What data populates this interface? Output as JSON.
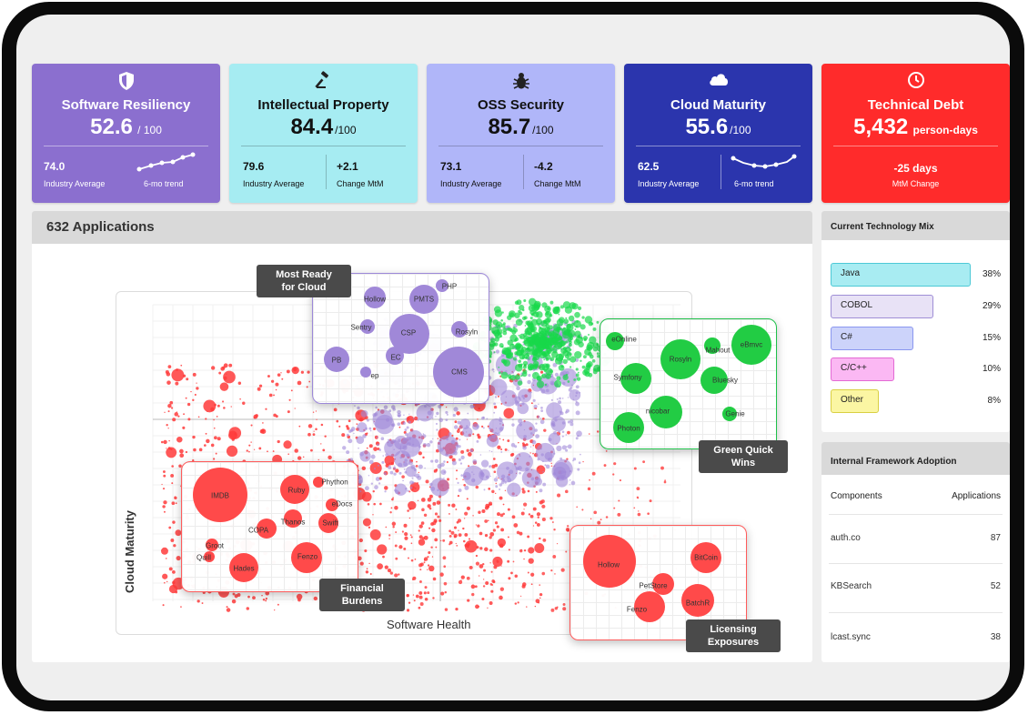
{
  "cards": [
    {
      "id": "resiliency",
      "title": "Software Resiliency",
      "value": "52.6",
      "unit": " / 100",
      "stat1_value": "74.0",
      "stat1_label": "Industry Average",
      "stat2_value": "",
      "stat2_label": "6-mo trend",
      "icon": "shield-icon",
      "bg": "#8b6fcf",
      "theme": "dark"
    },
    {
      "id": "ip",
      "title": "Intellectual Property",
      "value": "84.4",
      "unit": "/100",
      "stat1_value": "79.6",
      "stat1_label": "Industry Average",
      "stat2_value": "+2.1",
      "stat2_label": "Change MtM",
      "icon": "gavel-icon",
      "bg": "#a6ecf2",
      "theme": "light"
    },
    {
      "id": "oss",
      "title": "OSS Security",
      "value": "85.7",
      "unit": "/100",
      "stat1_value": "73.1",
      "stat1_label": "Industry Average",
      "stat2_value": "-4.2",
      "stat2_label": "Change MtM",
      "icon": "bug-icon",
      "bg": "#b0b6f9",
      "theme": "light"
    },
    {
      "id": "cloud",
      "title": "Cloud Maturity",
      "value": "55.6",
      "unit": "/100",
      "stat1_value": "62.5",
      "stat1_label": "Industry Average",
      "stat2_value": "",
      "stat2_label": "6-mo trend",
      "icon": "cloud-icon",
      "bg": "#2b35ad",
      "theme": "dark"
    },
    {
      "id": "debt",
      "title": "Technical Debt",
      "value": "5,432",
      "unit": " person-days",
      "stat1_value": "-25 days",
      "stat1_label": "MtM Change",
      "icon": "clock-icon",
      "bg": "#ff2b2b",
      "theme": "dark"
    }
  ],
  "apps_panel": {
    "title": "632 Applications",
    "ylabel": "Cloud Maturity",
    "xlabel": "Software Health"
  },
  "zooms": {
    "cloud_ready": {
      "callout": [
        "Most Ready",
        "for Cloud"
      ],
      "color": "#a088d8",
      "labels": [
        "Hollow",
        "PMTS",
        "PHP",
        "Sentry",
        "CSP",
        "Rosyln",
        "PB",
        "EC",
        "CMS",
        "ep"
      ]
    },
    "quick_wins": {
      "callout": [
        "Green Quick",
        "Wins"
      ],
      "color": "#22cc44",
      "labels": [
        "eOnline",
        "Rosyln",
        "Mahout",
        "eBmvc",
        "Symfony",
        "Bluesky",
        "nicobar",
        "Genie",
        "Photon"
      ]
    },
    "financial": {
      "callout": [
        "Financial",
        "Burdens"
      ],
      "color": "#ff4a4a",
      "labels": [
        "IMDB",
        "Ruby",
        "Phython",
        "eDocs",
        "Thanos",
        "Swift",
        "COPA",
        "Groot",
        "Quill",
        "Hades",
        "Fenzo"
      ]
    },
    "licensing": {
      "callout": [
        "Licensing",
        "Exposures"
      ],
      "color": "#ff4a4a",
      "labels": [
        "Hollow",
        "BitCoin",
        "PetStore",
        "BatchR",
        "Fenzo"
      ]
    }
  },
  "tech_mix": {
    "title": "Current Technology Mix",
    "items": [
      {
        "name": "Java",
        "pct": "38%",
        "bg": "#a8ecf2",
        "border": "#4dc9d6"
      },
      {
        "name": "COBOL",
        "pct": "29%",
        "bg": "#e8e2f6",
        "border": "#9f8ed6"
      },
      {
        "name": "C#",
        "pct": "15%",
        "bg": "#ccd3fa",
        "border": "#8a96ef"
      },
      {
        "name": "C/C++",
        "pct": "10%",
        "bg": "#fbb8f3",
        "border": "#e36ad4"
      },
      {
        "name": "Other",
        "pct": "8%",
        "bg": "#fbf6a3",
        "border": "#d9cf42"
      }
    ]
  },
  "framework": {
    "title": "Internal Framework Adoption",
    "col1": "Components",
    "col2": "Applications",
    "rows": [
      {
        "name": "auth.co",
        "count": "87"
      },
      {
        "name": "KBSearch",
        "count": "52"
      },
      {
        "name": "lcast.sync",
        "count": "38"
      }
    ]
  }
}
